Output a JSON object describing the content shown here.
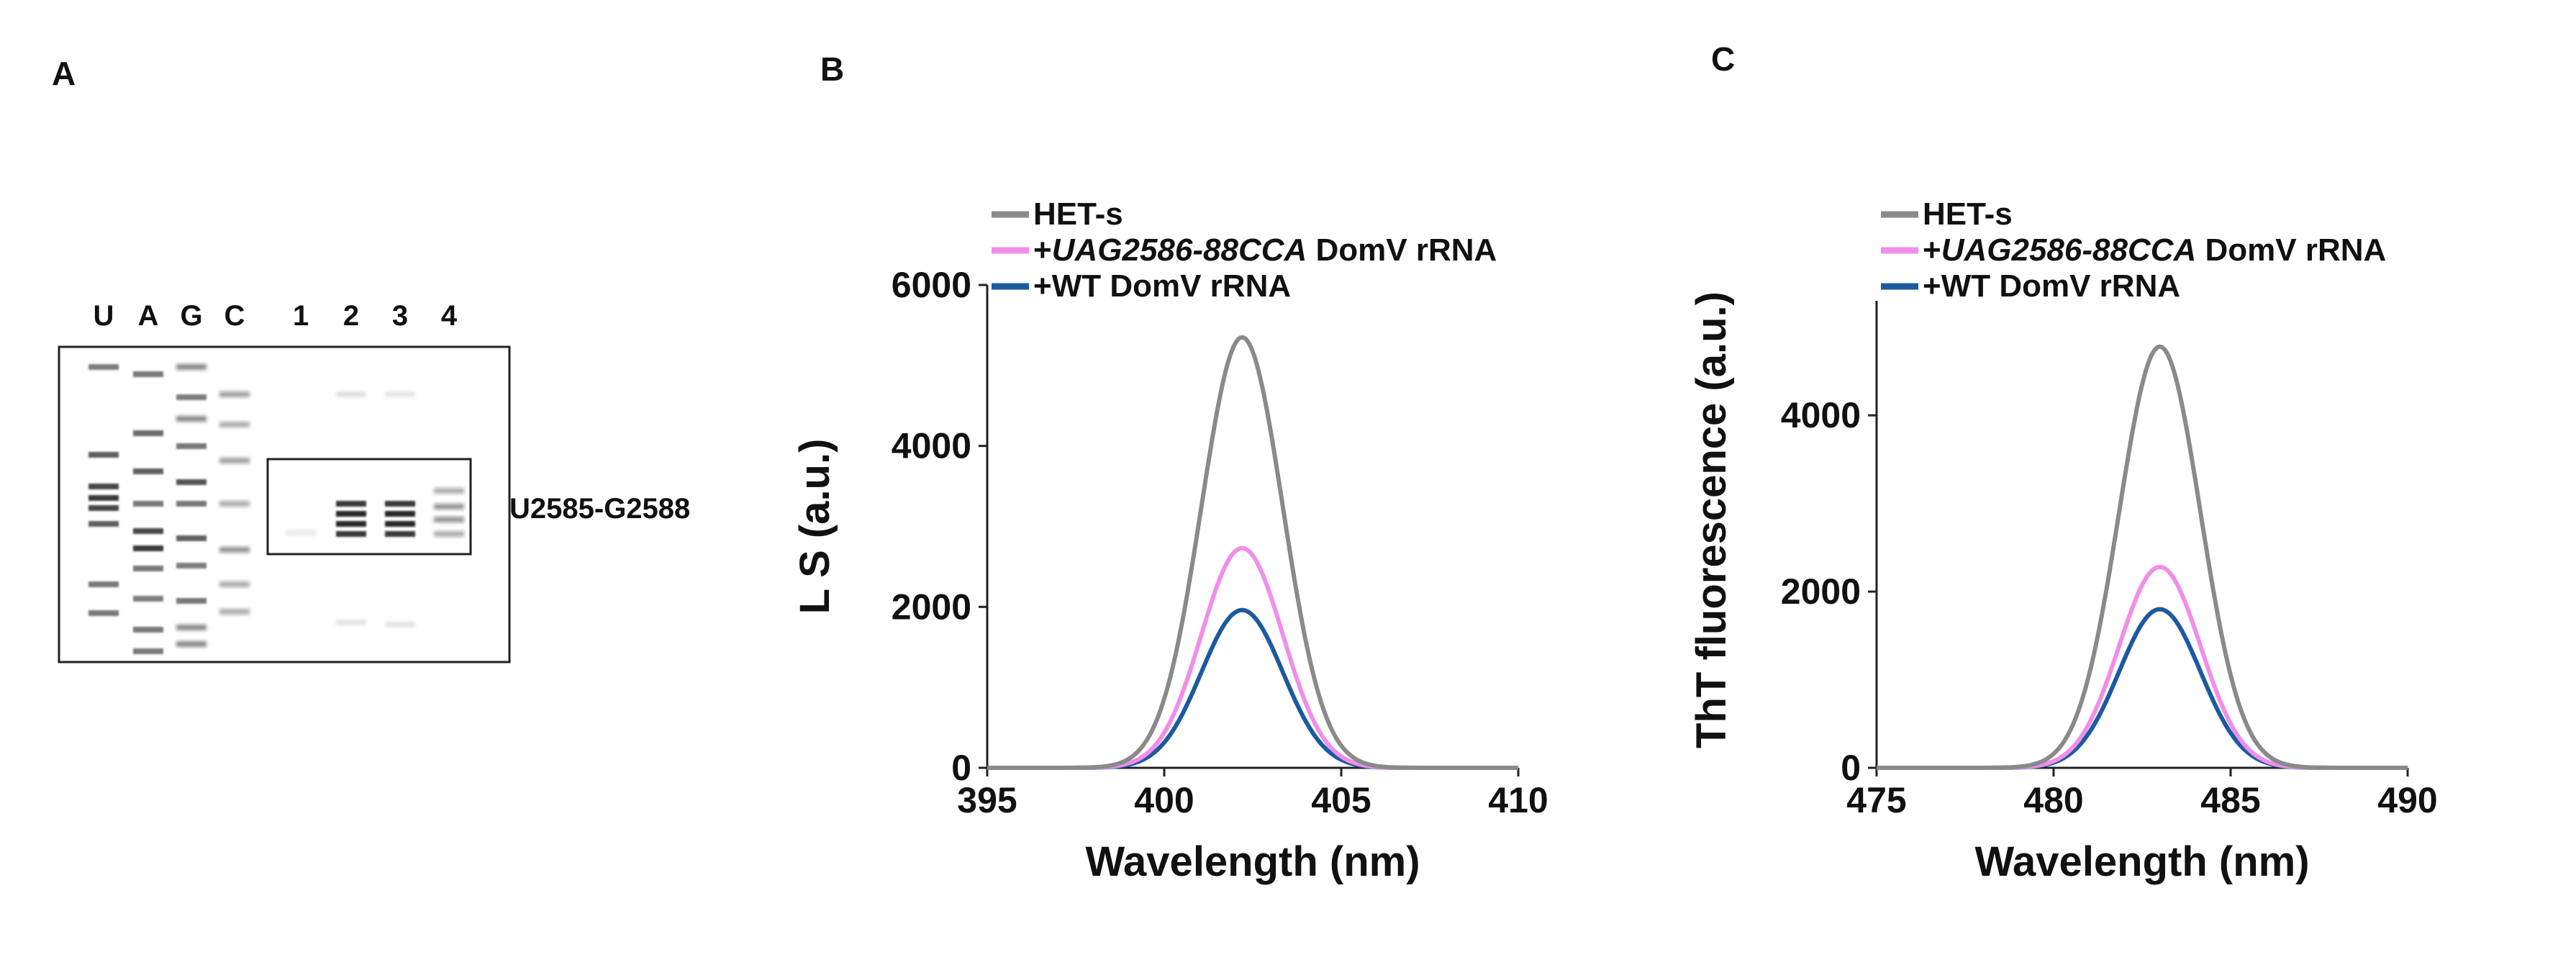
{
  "panels": {
    "A": {
      "label": "A",
      "lanes": [
        "U",
        "A",
        "G",
        "C",
        "1",
        "2",
        "3",
        "4"
      ],
      "region_label": "U2585-G2588"
    },
    "B": {
      "label": "B"
    },
    "C": {
      "label": "C"
    }
  },
  "chart_data": [
    {
      "type": "line",
      "panel": "B",
      "xlabel": "Wavelength (nm)",
      "ylabel": "L S (a.u.)",
      "xlim": [
        395,
        410
      ],
      "ylim": [
        0,
        6000
      ],
      "xticks": [
        "395",
        "400",
        "405",
        "410"
      ],
      "yticks": [
        "0",
        "2000",
        "4000",
        "6000"
      ],
      "grid": false,
      "legend_position": "top-left",
      "series": [
        {
          "name": "HET-s",
          "name_italic": "",
          "name_rest": "",
          "color": "#8a8a8a",
          "peak_x": 402.2,
          "peak_y": 5350,
          "sigma": 1.15
        },
        {
          "name": "+",
          "name_italic": "UAG2586-88CCA",
          "name_rest": " DomV rRNA",
          "color": "#f08ee8",
          "peak_x": 402.2,
          "peak_y": 2730,
          "sigma": 1.15
        },
        {
          "name": "+WT DomV rRNA",
          "name_italic": "",
          "name_rest": "",
          "color": "#1c5aa0",
          "peak_x": 402.2,
          "peak_y": 1960,
          "sigma": 1.15
        }
      ]
    },
    {
      "type": "line",
      "panel": "C",
      "xlabel": "Wavelength (nm)",
      "ylabel": "ThT fluorescence (a.u.)",
      "xlim": [
        475,
        490
      ],
      "ylim": [
        0,
        5300
      ],
      "xticks": [
        "475",
        "480",
        "485",
        "490"
      ],
      "yticks": [
        "0",
        "2000",
        "4000"
      ],
      "grid": false,
      "legend_position": "top-left",
      "series": [
        {
          "name": "HET-s",
          "name_italic": "",
          "name_rest": "",
          "color": "#8a8a8a",
          "peak_x": 483.0,
          "peak_y": 4780,
          "sigma": 1.15
        },
        {
          "name": "+",
          "name_italic": "UAG2586-88CCA",
          "name_rest": " DomV rRNA",
          "color": "#f08ee8",
          "peak_x": 483.0,
          "peak_y": 2280,
          "sigma": 1.15
        },
        {
          "name": "+WT DomV rRNA",
          "name_italic": "",
          "name_rest": "",
          "color": "#1c5aa0",
          "peak_x": 483.0,
          "peak_y": 1800,
          "sigma": 1.15
        }
      ]
    }
  ]
}
